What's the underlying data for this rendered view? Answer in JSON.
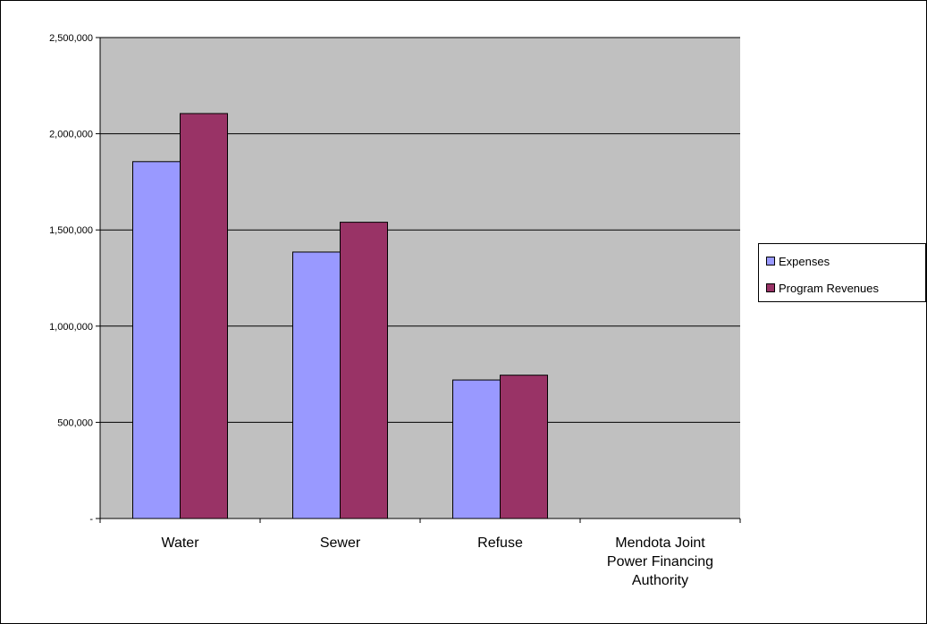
{
  "chart_data": {
    "type": "bar",
    "categories": [
      "Water",
      "Sewer",
      "Refuse",
      "Mendota Joint Power Financing Authority"
    ],
    "category_lines": [
      [
        "Water"
      ],
      [
        "Sewer"
      ],
      [
        "Refuse"
      ],
      [
        "Mendota Joint",
        "Power Financing",
        "Authority"
      ]
    ],
    "series": [
      {
        "name": "Expenses",
        "values": [
          1855000,
          1385000,
          720000,
          0
        ],
        "color": "#9999FF"
      },
      {
        "name": "Program Revenues",
        "values": [
          2105000,
          1540000,
          745000,
          0
        ],
        "color": "#993366"
      }
    ],
    "ylim": [
      0,
      2500000
    ],
    "yticks": [
      0,
      500000,
      1000000,
      1500000,
      2000000,
      2500000
    ],
    "ytick_labels": [
      "-",
      "500,000",
      "1,000,000",
      "1,500,000",
      "2,000,000",
      "2,500,000"
    ],
    "title": "",
    "xlabel": "",
    "ylabel": "",
    "grid": true,
    "legend_position": "right",
    "plot_background": "#C0C0C0"
  }
}
